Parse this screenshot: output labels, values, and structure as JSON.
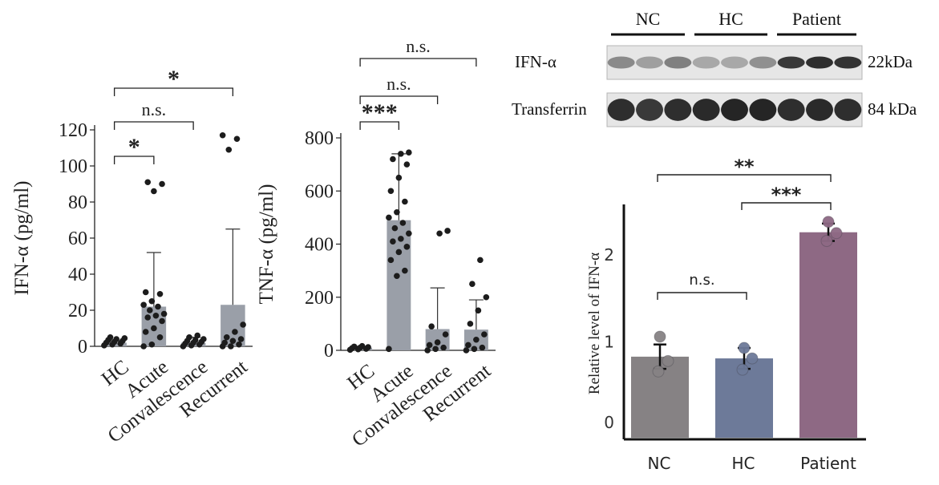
{
  "chart_data": [
    {
      "type": "bar",
      "ylabel": "IFN-α (pg/ml)",
      "categories": [
        "HC",
        "Acute",
        "Convalescence",
        "Recurrent"
      ],
      "values": [
        2,
        22,
        2,
        23
      ],
      "error_upper": [
        3,
        52,
        5,
        65
      ],
      "ylim": [
        0,
        120
      ],
      "yticks": [
        "0",
        "20",
        "40",
        "60",
        "80",
        "100",
        "120"
      ],
      "points": [
        [
          0.5,
          1,
          1.5,
          2,
          2.5,
          3,
          3.5,
          4,
          4.5,
          5
        ],
        [
          0,
          1,
          5,
          8,
          10,
          14,
          16,
          17,
          18,
          20,
          22,
          23,
          25,
          29,
          30,
          86,
          90,
          91
        ],
        [
          0,
          0.5,
          1,
          1.5,
          2,
          2.5,
          3,
          3.5,
          4,
          5,
          6
        ],
        [
          0,
          0,
          1,
          2,
          3,
          4,
          5,
          8,
          12,
          109,
          115,
          117
        ]
      ],
      "significance": [
        {
          "groups": [
            0,
            1
          ],
          "label": "*"
        },
        {
          "groups": [
            0,
            2
          ],
          "label": "n.s."
        },
        {
          "groups": [
            0,
            3
          ],
          "label": "*"
        }
      ]
    },
    {
      "type": "bar",
      "ylabel": "TNF-α (pg/ml)",
      "categories": [
        "HC",
        "Acute",
        "Convalescence",
        "Recurrent"
      ],
      "values": [
        10,
        490,
        80,
        78
      ],
      "error_upper": [
        15,
        740,
        235,
        190
      ],
      "ylim": [
        0,
        800
      ],
      "yticks": [
        "0",
        "200",
        "400",
        "600",
        "800"
      ],
      "points": [
        [
          2,
          4,
          6,
          8,
          10,
          12,
          14,
          16
        ],
        [
          5,
          280,
          300,
          340,
          370,
          390,
          410,
          420,
          440,
          460,
          480,
          500,
          520,
          560,
          600,
          650,
          700,
          720,
          740,
          745
        ],
        [
          0,
          5,
          10,
          20,
          30,
          60,
          90,
          440,
          450
        ],
        [
          0,
          5,
          10,
          20,
          40,
          60,
          100,
          150,
          200,
          250,
          340
        ]
      ],
      "significance": [
        {
          "groups": [
            0,
            1
          ],
          "label": "***"
        },
        {
          "groups": [
            0,
            2
          ],
          "label": "n.s."
        },
        {
          "groups": [
            0,
            3
          ],
          "label": "n.s."
        }
      ]
    },
    {
      "type": "bar",
      "ylabel": "Relative level of IFN-α",
      "categories": [
        "NC",
        "HC",
        "Patient"
      ],
      "values": [
        0.95,
        0.93,
        2.38
      ],
      "error": [
        0.14,
        0.12,
        0.1
      ],
      "colors": [
        "#868284",
        "#6d7a99",
        "#8e6984"
      ],
      "points": [
        [
          0.78,
          0.9,
          1.18
        ],
        [
          0.8,
          0.93,
          1.05
        ],
        [
          2.28,
          2.37,
          2.5
        ]
      ],
      "ylim": [
        0,
        2.7
      ],
      "yticks": [
        "0",
        "1",
        "2"
      ],
      "significance": [
        {
          "groups": [
            0,
            1
          ],
          "label": "n.s."
        },
        {
          "groups": [
            1,
            2
          ],
          "label": "***"
        },
        {
          "groups": [
            0,
            2
          ],
          "label": "**"
        }
      ]
    }
  ],
  "western_blot": {
    "groups": [
      "NC",
      "HC",
      "Patient"
    ],
    "rows": [
      {
        "label": "IFN-α",
        "size": "22kDa",
        "intensity": [
          0.45,
          0.35,
          0.5,
          0.3,
          0.3,
          0.42,
          0.85,
          0.9,
          0.88
        ]
      },
      {
        "label": "Transferrin",
        "size": "84 kDa",
        "intensity": [
          0.9,
          0.85,
          0.9,
          0.92,
          0.95,
          0.95,
          0.9,
          0.92,
          0.9
        ]
      }
    ]
  }
}
